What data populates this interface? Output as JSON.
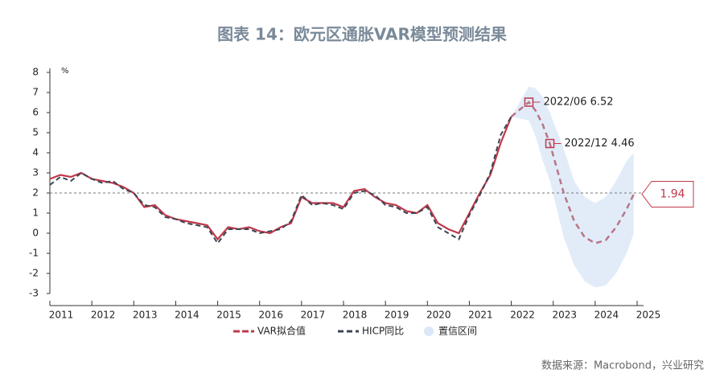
{
  "chart_data": {
    "type": "line",
    "title": "图表 14：欧元区通胀VAR模型预测结果",
    "y_unit": "%",
    "source": "数据来源：Macrobond，兴业研究",
    "xlim": [
      2011,
      2025
    ],
    "xticks": [
      2011,
      2012,
      2013,
      2014,
      2015,
      2016,
      2017,
      2018,
      2019,
      2020,
      2021,
      2022,
      2023,
      2024,
      2025
    ],
    "ylim": [
      -3,
      8
    ],
    "yticks": [
      -3,
      -2,
      -1,
      0,
      1,
      2,
      3,
      4,
      5,
      6,
      7,
      8
    ],
    "reference_line": 2,
    "x": [
      2011,
      2011.25,
      2011.5,
      2011.75,
      2012,
      2012.25,
      2012.5,
      2012.75,
      2013,
      2013.25,
      2013.5,
      2013.75,
      2014,
      2014.25,
      2014.5,
      2014.75,
      2015,
      2015.25,
      2015.5,
      2015.75,
      2016,
      2016.25,
      2016.5,
      2016.75,
      2017,
      2017.25,
      2017.5,
      2017.75,
      2018,
      2018.25,
      2018.5,
      2018.75,
      2019,
      2019.25,
      2019.5,
      2019.75,
      2020,
      2020.25,
      2020.5,
      2020.75,
      2021,
      2021.25,
      2021.5,
      2021.75,
      2022,
      2022.42,
      2022.58,
      2022.75,
      2022.92,
      2023.25,
      2023.5,
      2023.75,
      2024,
      2024.25,
      2024.5,
      2024.75,
      2024.92
    ],
    "series": [
      {
        "name": "VAR拟合值",
        "color": "#c0394b",
        "forecast_color": "#b87585",
        "values": [
          2.7,
          2.9,
          2.8,
          3.0,
          2.7,
          2.6,
          2.5,
          2.3,
          2.0,
          1.3,
          1.4,
          0.9,
          0.7,
          0.6,
          0.5,
          0.4,
          -0.3,
          0.3,
          0.2,
          0.3,
          0.1,
          0.0,
          0.3,
          0.5,
          1.8,
          1.5,
          1.5,
          1.5,
          1.3,
          2.1,
          2.2,
          1.8,
          1.5,
          1.4,
          1.1,
          1.0,
          1.4,
          0.5,
          0.2,
          0.0,
          1.0,
          2.0,
          2.9,
          4.5,
          5.8,
          6.52,
          6.1,
          5.4,
          4.46,
          2.0,
          0.6,
          -0.2,
          -0.5,
          -0.35,
          0.3,
          1.2,
          1.94
        ]
      },
      {
        "name": "HICP同比",
        "color": "#3b4654",
        "values": [
          2.4,
          2.8,
          2.6,
          3.0,
          2.7,
          2.5,
          2.6,
          2.2,
          2.0,
          1.4,
          1.3,
          0.8,
          0.7,
          0.5,
          0.4,
          0.3,
          -0.5,
          0.2,
          0.2,
          0.2,
          0.0,
          0.1,
          0.2,
          0.6,
          1.9,
          1.4,
          1.5,
          1.4,
          1.2,
          2.0,
          2.1,
          1.9,
          1.4,
          1.3,
          1.0,
          1.0,
          1.3,
          0.3,
          0.0,
          -0.3,
          0.9,
          1.9,
          3.0,
          4.9,
          5.8,
          null,
          null,
          null,
          null,
          null,
          null,
          null,
          null,
          null,
          null,
          null,
          null
        ]
      }
    ],
    "band": {
      "name": "置信区间",
      "color": "#dbe7f7",
      "upper": [
        null,
        null,
        null,
        null,
        null,
        null,
        null,
        null,
        null,
        null,
        null,
        null,
        null,
        null,
        null,
        null,
        null,
        null,
        null,
        null,
        null,
        null,
        null,
        null,
        null,
        null,
        null,
        null,
        null,
        null,
        null,
        null,
        null,
        null,
        null,
        null,
        null,
        null,
        null,
        null,
        null,
        null,
        null,
        null,
        5.8,
        7.3,
        7.2,
        6.8,
        6.0,
        4.2,
        2.6,
        1.8,
        1.5,
        1.8,
        2.6,
        3.6,
        4.0
      ],
      "lower": [
        null,
        null,
        null,
        null,
        null,
        null,
        null,
        null,
        null,
        null,
        null,
        null,
        null,
        null,
        null,
        null,
        null,
        null,
        null,
        null,
        null,
        null,
        null,
        null,
        null,
        null,
        null,
        null,
        null,
        null,
        null,
        null,
        null,
        null,
        null,
        null,
        null,
        null,
        null,
        null,
        null,
        null,
        null,
        null,
        5.8,
        5.6,
        4.8,
        3.6,
        2.6,
        -0.2,
        -1.6,
        -2.4,
        -2.7,
        -2.6,
        -2.0,
        -1.0,
        0.0
      ]
    },
    "annotations": [
      {
        "label": "2022/06  6.52",
        "x": 2022.42,
        "y": 6.52
      },
      {
        "label": "2022/12  4.46",
        "x": 2022.92,
        "y": 4.46
      }
    ],
    "end_label": {
      "label": "1.94",
      "x": 2025,
      "y": 1.94
    }
  }
}
